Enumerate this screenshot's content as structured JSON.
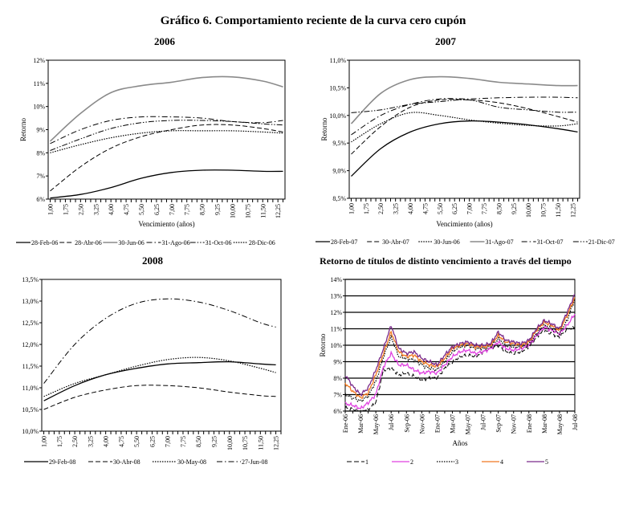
{
  "figure_title": "Gráfico 6. Comportamiento reciente de la curva cero cupón",
  "chart_data": [
    {
      "type": "line",
      "title": "2006",
      "xlabel": "Vencimiento (años)",
      "ylabel": "Retorno",
      "ylim": [
        6,
        12
      ],
      "yticks": [
        "6%",
        "7%",
        "8%",
        "9%",
        "10%",
        "11%",
        "12%"
      ],
      "xticks": [
        "1,00",
        "1,75",
        "2,50",
        "3,25",
        "4,00",
        "4,75",
        "5,50",
        "6,25",
        "7,00",
        "7,75",
        "8,50",
        "9,25",
        "10,00",
        "10,75",
        "11,50",
        "12,25"
      ],
      "x": [
        1,
        2.5,
        4,
        5.5,
        7,
        8.5,
        10,
        11.5,
        12.5
      ],
      "legend": "bottom",
      "series": [
        {
          "name": "28-Feb-06",
          "style": "solid",
          "values": [
            6.05,
            6.2,
            6.5,
            6.9,
            7.15,
            7.25,
            7.25,
            7.2,
            7.2
          ]
        },
        {
          "name": "28-Abr-06",
          "style": "dashed",
          "values": [
            6.35,
            7.4,
            8.2,
            8.7,
            9.0,
            9.2,
            9.2,
            9.05,
            8.9
          ]
        },
        {
          "name": "30-Jun-06",
          "style": "gray",
          "values": [
            8.5,
            9.7,
            10.6,
            10.9,
            11.05,
            11.25,
            11.28,
            11.1,
            10.85
          ]
        },
        {
          "name": "31-Ago-06",
          "style": "dashdot",
          "values": [
            8.4,
            9.0,
            9.4,
            9.55,
            9.55,
            9.5,
            9.35,
            9.3,
            9.4
          ]
        },
        {
          "name": "31-Oct-06",
          "style": "dashdotdot",
          "values": [
            8.1,
            8.6,
            9.05,
            9.3,
            9.4,
            9.4,
            9.35,
            9.25,
            9.2
          ]
        },
        {
          "name": "28-Dic-06",
          "style": "dotted",
          "values": [
            8.0,
            8.35,
            8.65,
            8.85,
            8.95,
            8.95,
            8.95,
            8.9,
            8.85
          ]
        }
      ]
    },
    {
      "type": "line",
      "title": "2007",
      "xlabel": "Vencimiento (años)",
      "ylabel": "Retorno",
      "ylim": [
        8.5,
        11
      ],
      "yticks": [
        "8,5%",
        "9,0%",
        "9,5%",
        "10,0%",
        "10,5%",
        "11,0%"
      ],
      "xticks": [
        "1,00",
        "1,75",
        "2,50",
        "3,25",
        "4,00",
        "4,75",
        "5,50",
        "6,25",
        "7,00",
        "7,75",
        "8,50",
        "9,25",
        "10,00",
        "10,75",
        "11,50",
        "12,25"
      ],
      "x": [
        1,
        2.5,
        4,
        5.5,
        7,
        8.5,
        10,
        11.5,
        12.5
      ],
      "legend": "bottom",
      "series": [
        {
          "name": "28-Feb-07",
          "style": "solid",
          "values": [
            8.9,
            9.4,
            9.7,
            9.85,
            9.9,
            9.88,
            9.83,
            9.76,
            9.7
          ]
        },
        {
          "name": "30-Abr-07",
          "style": "dashed",
          "values": [
            9.3,
            9.8,
            10.15,
            10.28,
            10.28,
            10.23,
            10.12,
            9.98,
            9.88
          ]
        },
        {
          "name": "30-Jun-06",
          "style": "dotted",
          "values": [
            9.52,
            9.85,
            10.05,
            10.0,
            9.92,
            9.86,
            9.82,
            9.81,
            9.85
          ]
        },
        {
          "name": "31-Ago-07",
          "style": "gray",
          "values": [
            9.85,
            10.4,
            10.65,
            10.7,
            10.67,
            10.6,
            10.57,
            10.54,
            10.54
          ]
        },
        {
          "name": "31-Oct-07",
          "style": "dashdot",
          "values": [
            9.65,
            10.0,
            10.2,
            10.3,
            10.3,
            10.32,
            10.33,
            10.33,
            10.32
          ]
        },
        {
          "name": "21-Dic-07",
          "style": "dashdotdot",
          "values": [
            10.05,
            10.1,
            10.2,
            10.25,
            10.28,
            10.15,
            10.1,
            10.06,
            10.06
          ]
        }
      ]
    },
    {
      "type": "line",
      "title": "2008",
      "xlabel": "",
      "ylabel": "",
      "ylim": [
        10,
        13.5
      ],
      "yticks": [
        "10,0%",
        "10,5%",
        "11,0%",
        "11,5%",
        "12,0%",
        "12,5%",
        "13,0%",
        "13,5%"
      ],
      "xticks": [
        "1,00",
        "1,75",
        "2,50",
        "3,25",
        "4,00",
        "4,75",
        "5,50",
        "6,25",
        "7,00",
        "7,75",
        "8,50",
        "9,25",
        "10,00",
        "10,75",
        "11,50",
        "12,25"
      ],
      "x": [
        1,
        2.5,
        4,
        5.5,
        7,
        8.5,
        10,
        11.5,
        12.25
      ],
      "legend": "bottom",
      "series": [
        {
          "name": "29-Feb-08",
          "style": "solid",
          "values": [
            10.7,
            11.05,
            11.3,
            11.45,
            11.55,
            11.58,
            11.6,
            11.55,
            11.53
          ]
        },
        {
          "name": "30-Abr-08",
          "style": "dashed",
          "values": [
            10.5,
            10.78,
            10.95,
            11.05,
            11.05,
            11.0,
            10.9,
            10.82,
            10.8
          ]
        },
        {
          "name": "30-May-08",
          "style": "dotted",
          "values": [
            10.8,
            11.1,
            11.3,
            11.5,
            11.65,
            11.7,
            11.62,
            11.45,
            11.35
          ]
        },
        {
          "name": "27-Jun-08",
          "style": "dashdot",
          "values": [
            11.1,
            12.0,
            12.6,
            12.95,
            13.05,
            12.98,
            12.78,
            12.5,
            12.4
          ]
        }
      ]
    },
    {
      "type": "line",
      "title": "Retorno de títulos de distinto vencimiento a través del tiempo",
      "xlabel": "Años",
      "ylabel": "Retorno",
      "ylim": [
        6,
        14
      ],
      "yticks": [
        "6%",
        "7%",
        "8%",
        "9%",
        "10%",
        "11%",
        "12%",
        "13%",
        "14%"
      ],
      "xticks": [
        "Ene-06",
        "Mar-06",
        "May-06",
        "Jul-06",
        "Sep-06",
        "Nov-06",
        "Ene-07",
        "Mar-07",
        "May-07",
        "Jul-07",
        "Sep-07",
        "Nov-07",
        "Ene-08",
        "Mar-08",
        "May-08",
        "Jul-08"
      ],
      "grid": "horizontal",
      "legend": "bottom",
      "series": [
        {
          "name": "1",
          "style": "dashed",
          "color": "#000000",
          "values": [
            6.2,
            6.1,
            6.0,
            6.1,
            6.5,
            8.5,
            8.6,
            8.2,
            8.3,
            8.1,
            7.9,
            8.0,
            8.0,
            8.6,
            9.0,
            9.3,
            9.4,
            9.3,
            9.6,
            9.8,
            10.0,
            9.6,
            9.5,
            9.6,
            9.9,
            10.5,
            10.9,
            10.7,
            10.5,
            11.0,
            11.1
          ]
        },
        {
          "name": "2",
          "style": "solid",
          "color": "#e040e0",
          "values": [
            6.45,
            6.35,
            6.15,
            6.5,
            7.0,
            8.7,
            9.5,
            8.8,
            8.8,
            8.5,
            8.3,
            8.4,
            8.3,
            8.8,
            9.3,
            9.6,
            9.7,
            9.5,
            9.6,
            9.8,
            10.2,
            9.8,
            9.7,
            9.8,
            10.0,
            10.6,
            11.1,
            10.9,
            10.7,
            11.2,
            11.9
          ]
        },
        {
          "name": "3",
          "style": "dotted",
          "color": "#000000",
          "values": [
            7.0,
            6.8,
            6.6,
            6.9,
            7.8,
            9.3,
            10.5,
            9.3,
            9.2,
            9.1,
            8.8,
            8.6,
            8.5,
            9.0,
            9.6,
            9.9,
            10.0,
            9.8,
            9.8,
            9.9,
            10.4,
            10.0,
            9.9,
            9.9,
            10.1,
            10.7,
            11.2,
            11.0,
            10.7,
            11.5,
            12.8
          ]
        },
        {
          "name": "4",
          "style": "solid",
          "color": "#f07820",
          "values": [
            7.7,
            7.2,
            6.8,
            7.1,
            8.2,
            9.5,
            10.8,
            9.6,
            9.3,
            9.4,
            9.0,
            8.8,
            8.7,
            9.2,
            9.8,
            10.0,
            10.1,
            9.9,
            9.9,
            10.0,
            10.6,
            10.2,
            10.1,
            10.0,
            10.2,
            10.9,
            11.4,
            11.2,
            10.9,
            11.8,
            12.9
          ]
        },
        {
          "name": "5",
          "style": "solid",
          "color": "#7a2a8a",
          "values": [
            8.2,
            7.5,
            7.0,
            7.4,
            8.5,
            9.8,
            11.2,
            9.8,
            9.5,
            9.6,
            9.2,
            9.0,
            8.8,
            9.4,
            9.9,
            10.1,
            10.2,
            10.0,
            10.0,
            10.1,
            10.8,
            10.3,
            10.2,
            10.1,
            10.3,
            11.0,
            11.5,
            11.3,
            11.0,
            12.0,
            13.1
          ]
        }
      ]
    }
  ]
}
